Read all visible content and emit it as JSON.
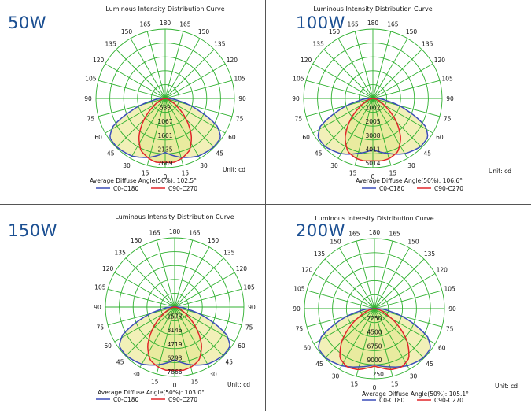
{
  "chart_data": [
    {
      "type": "polar",
      "label": "50W",
      "title": "Luminous Intensity Distribution Curve",
      "angle_labels": [
        "180",
        "165",
        "165",
        "150",
        "150",
        "135",
        "135",
        "120",
        "120",
        "105",
        "105",
        "90",
        "90",
        "75",
        "75",
        "60",
        "60",
        "45",
        "45",
        "30",
        "30",
        "15",
        "15",
        "0"
      ],
      "ring_labels": [
        "533",
        "1067",
        "1601",
        "2135",
        "2669"
      ],
      "unit": "Unit: cd",
      "average_text": "Average Diffuse Angle(50%): 102.5°",
      "series": [
        {
          "name": "C0-C180",
          "color": "#3b4db8",
          "points": [
            [
              0,
              0.78
            ],
            [
              15,
              0.88
            ],
            [
              30,
              0.96
            ],
            [
              45,
              0.99
            ],
            [
              55,
              0.98
            ],
            [
              62,
              0.85
            ],
            [
              70,
              0.52
            ],
            [
              80,
              0.2
            ],
            [
              90,
              0.04
            ]
          ]
        },
        {
          "name": "C90-C270",
          "color": "#e0262a",
          "points": [
            [
              0,
              0.92
            ],
            [
              8,
              0.93
            ],
            [
              15,
              0.9
            ],
            [
              25,
              0.83
            ],
            [
              35,
              0.66
            ],
            [
              45,
              0.43
            ],
            [
              55,
              0.22
            ],
            [
              65,
              0.1
            ],
            [
              80,
              0.02
            ]
          ]
        }
      ]
    },
    {
      "type": "polar",
      "label": "100W",
      "title": "Luminous Intensity Distribution Curve",
      "angle_labels": [
        "180",
        "165",
        "165",
        "150",
        "150",
        "135",
        "135",
        "120",
        "120",
        "105",
        "105",
        "90",
        "90",
        "75",
        "75",
        "60",
        "60",
        "45",
        "45",
        "30",
        "30",
        "15",
        "15",
        "0"
      ],
      "ring_labels": [
        "1002",
        "2005",
        "3008",
        "4011",
        "5014"
      ],
      "unit": "Unit: cd",
      "average_text": "Average Diffuse Angle(50%): 106.6°",
      "series": [
        {
          "name": "C0-C180",
          "color": "#3b4db8",
          "points": [
            [
              0,
              0.74
            ],
            [
              15,
              0.82
            ],
            [
              30,
              0.92
            ],
            [
              45,
              0.98
            ],
            [
              55,
              0.97
            ],
            [
              62,
              0.86
            ],
            [
              70,
              0.55
            ],
            [
              80,
              0.22
            ],
            [
              90,
              0.05
            ]
          ]
        },
        {
          "name": "C90-C270",
          "color": "#e0262a",
          "points": [
            [
              0,
              0.9
            ],
            [
              8,
              0.91
            ],
            [
              15,
              0.9
            ],
            [
              25,
              0.85
            ],
            [
              35,
              0.7
            ],
            [
              45,
              0.48
            ],
            [
              55,
              0.26
            ],
            [
              65,
              0.12
            ],
            [
              80,
              0.03
            ]
          ]
        }
      ]
    },
    {
      "type": "polar",
      "label": "150W",
      "title": "Luminous Intensity Distribution Curve",
      "angle_labels": [
        "180",
        "165",
        "165",
        "150",
        "150",
        "135",
        "135",
        "120",
        "120",
        "105",
        "105",
        "90",
        "90",
        "75",
        "75",
        "60",
        "60",
        "45",
        "45",
        "30",
        "30",
        "15",
        "15",
        "0"
      ],
      "ring_labels": [
        "1573",
        "3146",
        "4719",
        "6293",
        "7866"
      ],
      "unit": "Unit: cd",
      "average_text": "Average Diffuse Angle(50%): 103.0°",
      "series": [
        {
          "name": "C0-C180",
          "color": "#3b4db8",
          "points": [
            [
              0,
              0.76
            ],
            [
              15,
              0.86
            ],
            [
              30,
              0.95
            ],
            [
              45,
              0.99
            ],
            [
              55,
              0.98
            ],
            [
              62,
              0.85
            ],
            [
              70,
              0.53
            ],
            [
              80,
              0.2
            ],
            [
              90,
              0.04
            ]
          ]
        },
        {
          "name": "C90-C270",
          "color": "#e0262a",
          "points": [
            [
              0,
              0.91
            ],
            [
              8,
              0.92
            ],
            [
              15,
              0.9
            ],
            [
              25,
              0.84
            ],
            [
              35,
              0.68
            ],
            [
              45,
              0.45
            ],
            [
              55,
              0.24
            ],
            [
              65,
              0.11
            ],
            [
              80,
              0.02
            ]
          ]
        }
      ]
    },
    {
      "type": "polar",
      "label": "200W",
      "title": "Luminous Intensity Distribution Curve",
      "angle_labels": [
        "180",
        "165",
        "165",
        "150",
        "150",
        "135",
        "135",
        "120",
        "120",
        "105",
        "105",
        "90",
        "90",
        "75",
        "75",
        "60",
        "60",
        "45",
        "45",
        "30",
        "30",
        "15",
        "15",
        "0"
      ],
      "ring_labels": [
        "2250",
        "4500",
        "6750",
        "9000",
        "11250"
      ],
      "unit": "Unit: cd",
      "average_text": "Average Diffuse Angle(50%): 105.1°",
      "series": [
        {
          "name": "C0-C180",
          "color": "#3b4db8",
          "points": [
            [
              0,
              0.8
            ],
            [
              15,
              0.86
            ],
            [
              30,
              0.94
            ],
            [
              45,
              0.99
            ],
            [
              55,
              0.98
            ],
            [
              62,
              0.86
            ],
            [
              70,
              0.56
            ],
            [
              80,
              0.23
            ],
            [
              90,
              0.05
            ]
          ]
        },
        {
          "name": "C90-C270",
          "color": "#e0262a",
          "points": [
            [
              0,
              0.82
            ],
            [
              8,
              0.86
            ],
            [
              15,
              0.9
            ],
            [
              25,
              0.92
            ],
            [
              35,
              0.86
            ],
            [
              45,
              0.66
            ],
            [
              55,
              0.4
            ],
            [
              65,
              0.18
            ],
            [
              80,
              0.04
            ]
          ]
        }
      ]
    }
  ]
}
